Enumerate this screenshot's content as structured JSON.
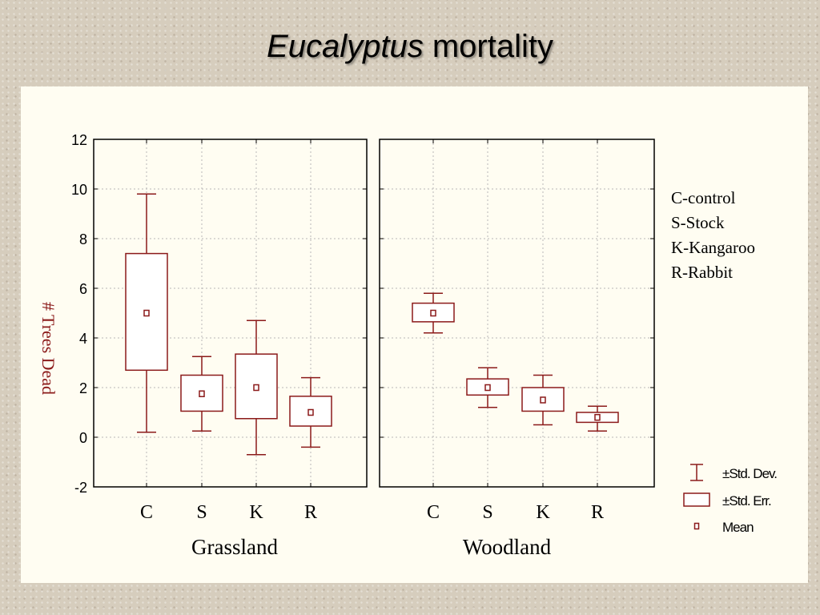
{
  "title": {
    "italic": "Eucalyptus",
    "rest": " mortality"
  },
  "chart_data": {
    "type": "box",
    "ylabel": "# Trees Dead",
    "ylim": [
      -2,
      12
    ],
    "yticks": [
      -2,
      0,
      2,
      4,
      6,
      8,
      10,
      12
    ],
    "grid": true,
    "panels": [
      {
        "name": "Grassland",
        "categories": [
          "C",
          "S",
          "K",
          "R"
        ],
        "stats": [
          {
            "mean": 5.0,
            "se_low": 2.7,
            "se_high": 7.4,
            "sd_low": 0.2,
            "sd_high": 9.8
          },
          {
            "mean": 1.75,
            "se_low": 1.05,
            "se_high": 2.5,
            "sd_low": 0.25,
            "sd_high": 3.25
          },
          {
            "mean": 2.0,
            "se_low": 0.75,
            "se_high": 3.35,
            "sd_low": -0.7,
            "sd_high": 4.7
          },
          {
            "mean": 1.0,
            "se_low": 0.45,
            "se_high": 1.65,
            "sd_low": -0.4,
            "sd_high": 2.4
          }
        ]
      },
      {
        "name": "Woodland",
        "categories": [
          "C",
          "S",
          "K",
          "R"
        ],
        "stats": [
          {
            "mean": 5.0,
            "se_low": 4.65,
            "se_high": 5.4,
            "sd_low": 4.2,
            "sd_high": 5.8
          },
          {
            "mean": 2.0,
            "se_low": 1.7,
            "se_high": 2.35,
            "sd_low": 1.2,
            "sd_high": 2.8
          },
          {
            "mean": 1.5,
            "se_low": 1.05,
            "se_high": 2.0,
            "sd_low": 0.5,
            "sd_high": 2.5
          },
          {
            "mean": 0.8,
            "se_low": 0.6,
            "se_high": 1.0,
            "sd_low": 0.25,
            "sd_high": 1.25
          }
        ]
      }
    ],
    "legend": [
      "±Std. Dev.",
      "±Std. Err.",
      "Mean"
    ],
    "colors": {
      "box": "#8b1a1a",
      "axis": "#000000",
      "grid": "#b8b8b8",
      "label": "#8b1a1a"
    }
  },
  "key": [
    "C-control",
    "S-Stock",
    "K-Kangaroo",
    "R-Rabbit"
  ]
}
